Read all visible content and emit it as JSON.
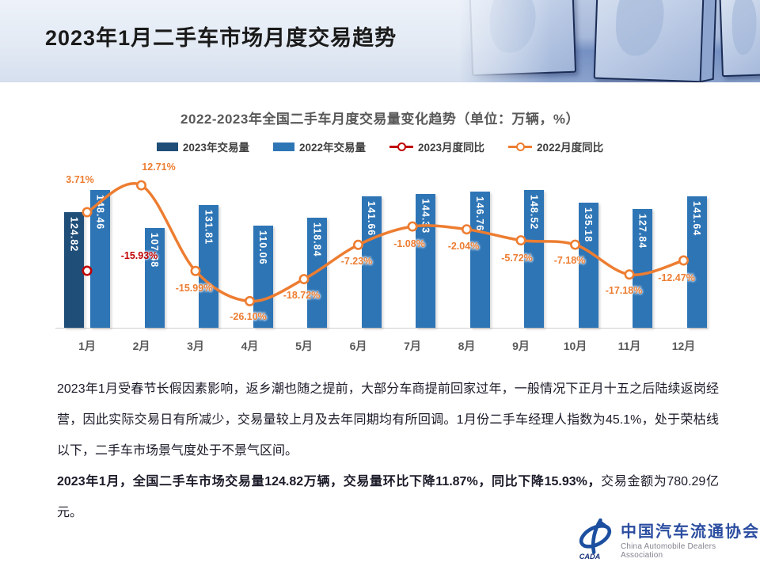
{
  "slide": {
    "title": "2023年1月二手车市场月度交易趋势"
  },
  "chart": {
    "title": "2022-2023年全国二手车月度交易量变化趋势（单位：万辆，%）",
    "legend": [
      {
        "label": "2023年交易量",
        "type": "bar",
        "color": "#1f4e79"
      },
      {
        "label": "2022年交易量",
        "type": "bar",
        "color": "#2e75b6"
      },
      {
        "label": "2023月度同比",
        "type": "line",
        "color": "#c00000"
      },
      {
        "label": "2022月度同比",
        "type": "line",
        "color": "#ed7d31"
      }
    ]
  },
  "chart_data": {
    "type": "bar",
    "title": "2022-2023年全国二手车月度交易量变化趋势（单位：万辆，%）",
    "categories": [
      "1月",
      "2月",
      "3月",
      "4月",
      "5月",
      "6月",
      "7月",
      "8月",
      "9月",
      "10月",
      "11月",
      "12月"
    ],
    "series": [
      {
        "name": "2023年交易量",
        "type": "bar",
        "color": "#1f4e79",
        "values": [
          124.82,
          null,
          null,
          null,
          null,
          null,
          null,
          null,
          null,
          null,
          null,
          null
        ]
      },
      {
        "name": "2022年交易量",
        "type": "bar",
        "color": "#2e75b6",
        "values": [
          148.46,
          107.68,
          131.81,
          110.06,
          118.84,
          141.66,
          144.33,
          146.76,
          148.52,
          135.18,
          127.84,
          141.64
        ]
      },
      {
        "name": "2023月度同比",
        "type": "line",
        "color": "#c00000",
        "values": [
          -15.93,
          null,
          null,
          null,
          null,
          null,
          null,
          null,
          null,
          null,
          null,
          null
        ]
      },
      {
        "name": "2022月度同比",
        "type": "line",
        "color": "#ed7d31",
        "values": [
          3.71,
          12.71,
          -15.99,
          -26.1,
          -18.72,
          -7.23,
          -1.08,
          -2.04,
          -5.72,
          -7.18,
          -17.18,
          -12.47
        ]
      }
    ],
    "xlabel": "",
    "ylabel": "",
    "unit": "万辆，%",
    "legend_position": "top",
    "grid": false
  },
  "body": {
    "p1": "2023年1月受春节长假因素影响，返乡潮也随之提前，大部分车商提前回家过年，一般情况下正月十五之后陆续返岗经营，因此实际交易日有所减少，交易量较上月及去年同期均有所回调。1月份二手车经理人指数为45.1%，处于荣枯线以下，二手车市场景气度处于不景气区间。",
    "p2_bold": "2023年1月，全国二手车市场交易量124.82万辆，交易量环比下降11.87%，同比下降15.93%，",
    "p2_regular": "交易金额为780.29亿元。"
  },
  "logo": {
    "name_cn": "中国汽车流通协会",
    "name_en": "China Automobile Dealers Association",
    "emblem_text": "CADA"
  }
}
